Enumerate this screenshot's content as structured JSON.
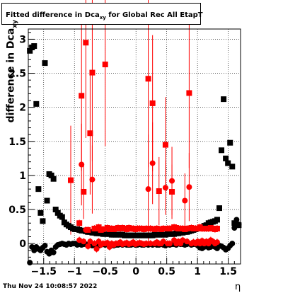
{
  "header": {
    "title_prefix": "Fitted difference in Dca",
    "title_sub": "xy",
    "title_suffix": " for Global Rec All EtapT"
  },
  "footer": {
    "timestamp": "Thu Nov 24 10:08:57 2022"
  },
  "chart_data": {
    "type": "scatter",
    "title": "Fitted difference in Dca_xy for Global Rec All EtapT",
    "xlabel": "η",
    "ylabel": "difference in Dca_xy",
    "xlim": [
      -1.75,
      1.7
    ],
    "ylim": [
      -0.3,
      3.15
    ],
    "xticks": [
      -1.5,
      -1,
      -0.5,
      0,
      0.5,
      1,
      1.5
    ],
    "xtick_labels": [
      "−1.5",
      "−1",
      "−0.5",
      "0",
      "0.5",
      "1",
      "1.5"
    ],
    "yticks": [
      0,
      0.5,
      1,
      1.5,
      2,
      2.5,
      3
    ],
    "ytick_labels": [
      "0",
      "0.5",
      "1",
      "1.5",
      "2",
      "2.5",
      "3"
    ],
    "grid": true,
    "colors": {
      "black_series": "#000000",
      "red_series": "#ff0000"
    },
    "series": [
      {
        "marker": "square",
        "color": "#000000",
        "x": [
          -1.725,
          -1.69,
          -1.655,
          -1.62,
          -1.585,
          -1.55,
          -1.515,
          -1.48,
          -1.445,
          -1.41,
          -1.375,
          -1.34,
          -1.305,
          -1.27,
          -1.235,
          -1.2,
          -1.165,
          -1.13,
          -1.095,
          -1.06,
          -1.025,
          -0.99,
          -0.955,
          -0.92,
          -0.885,
          -0.85,
          -0.815,
          -0.78,
          -0.745,
          -0.71,
          -0.675,
          -0.64,
          -0.605,
          -0.57,
          -0.535,
          -0.5,
          -0.465,
          -0.43,
          -0.395,
          -0.36,
          -0.325,
          -0.29,
          -0.255,
          -0.22,
          -0.185,
          -0.15,
          -0.115,
          -0.08,
          -0.045,
          -0.01,
          0.025,
          0.06,
          0.095,
          0.13,
          0.165,
          0.2,
          0.235,
          0.27,
          0.305,
          0.34,
          0.375,
          0.41,
          0.445,
          0.48,
          0.515,
          0.55,
          0.585,
          0.62,
          0.655,
          0.69,
          0.725,
          0.76,
          0.795,
          0.83,
          0.865,
          0.9,
          0.935,
          0.97,
          1.005,
          1.04,
          1.075,
          1.11,
          1.145,
          1.18,
          1.215,
          1.25,
          1.285,
          1.32,
          1.355,
          1.39,
          1.425,
          1.46,
          1.495,
          1.53,
          1.565,
          1.6,
          1.635,
          1.67
        ],
        "y": [
          2.83,
          2.88,
          2.9,
          2.05,
          0.8,
          0.45,
          0.33,
          2.65,
          0.63,
          1.02,
          1.0,
          0.95,
          0.5,
          0.45,
          0.41,
          0.39,
          0.31,
          0.28,
          0.26,
          0.24,
          0.22,
          0.21,
          0.21,
          0.2,
          0.19,
          0.19,
          0.18,
          0.17,
          0.17,
          0.16,
          0.16,
          0.15,
          0.15,
          0.15,
          0.14,
          0.14,
          0.14,
          0.14,
          0.13,
          0.13,
          0.13,
          0.13,
          0.13,
          0.13,
          0.12,
          0.12,
          0.12,
          0.12,
          0.12,
          0.12,
          0.12,
          0.12,
          0.12,
          0.12,
          0.12,
          0.12,
          0.12,
          0.12,
          0.13,
          0.13,
          0.13,
          0.13,
          0.13,
          0.13,
          0.14,
          0.14,
          0.14,
          0.14,
          0.15,
          0.15,
          0.16,
          0.16,
          0.17,
          0.17,
          0.18,
          0.19,
          0.2,
          0.21,
          0.22,
          0.23,
          0.24,
          0.26,
          0.27,
          0.3,
          0.31,
          0.32,
          0.33,
          0.35,
          0.52,
          1.37,
          2.12,
          1.25,
          1.18,
          1.48,
          1.13,
          0.3,
          0.27,
          0.27
        ]
      },
      {
        "marker": "circle",
        "color": "#000000",
        "x": [
          -1.725,
          -1.69,
          -1.655,
          -1.62,
          -1.585,
          -1.55,
          -1.515,
          -1.48,
          -1.445,
          -1.41,
          -1.375,
          -1.34,
          -1.305,
          -1.27,
          -1.235,
          -1.2,
          -1.165,
          -1.13,
          -1.095,
          -1.06,
          -1.025,
          -0.99,
          -0.955,
          -0.92,
          -0.885,
          -0.85,
          -0.815,
          -0.78,
          -0.745,
          -0.71,
          -0.675,
          -0.64,
          -0.605,
          -0.57,
          -0.535,
          -0.5,
          -0.465,
          -0.43,
          -0.395,
          -0.36,
          -0.325,
          -0.29,
          -0.255,
          -0.22,
          -0.185,
          -0.15,
          -0.115,
          -0.08,
          -0.045,
          -0.01,
          0.025,
          0.06,
          0.095,
          0.13,
          0.165,
          0.2,
          0.235,
          0.27,
          0.305,
          0.34,
          0.375,
          0.41,
          0.445,
          0.48,
          0.515,
          0.55,
          0.585,
          0.62,
          0.655,
          0.69,
          0.725,
          0.76,
          0.795,
          0.83,
          0.865,
          0.9,
          0.935,
          0.97,
          1.005,
          1.04,
          1.075,
          1.11,
          1.145,
          1.18,
          1.215,
          1.25,
          1.285,
          1.32,
          1.355,
          1.39,
          1.425,
          1.46,
          1.495,
          1.53,
          1.565,
          1.6,
          1.635,
          1.67
        ],
        "y": [
          -0.28,
          -0.05,
          -0.1,
          -0.05,
          -0.08,
          -0.1,
          -0.06,
          -0.03,
          -0.12,
          -0.15,
          -0.1,
          -0.13,
          -0.05,
          -0.02,
          -0.01,
          0.0,
          -0.01,
          -0.02,
          0.0,
          -0.01,
          0.0,
          0.0,
          -0.02,
          -0.01,
          -0.02,
          -0.01,
          -0.01,
          -0.03,
          0.0,
          -0.03,
          -0.02,
          -0.01,
          -0.03,
          -0.02,
          -0.01,
          -0.02,
          -0.01,
          -0.02,
          -0.02,
          -0.03,
          -0.02,
          -0.02,
          -0.01,
          -0.02,
          -0.01,
          -0.02,
          -0.02,
          -0.02,
          -0.01,
          -0.02,
          -0.02,
          -0.01,
          -0.02,
          -0.02,
          -0.01,
          -0.02,
          -0.01,
          -0.02,
          -0.01,
          -0.02,
          -0.02,
          -0.01,
          -0.02,
          -0.03,
          -0.01,
          -0.02,
          -0.01,
          -0.01,
          -0.02,
          0.0,
          -0.01,
          -0.01,
          -0.02,
          -0.01,
          0.0,
          -0.02,
          -0.01,
          -0.01,
          -0.03,
          -0.06,
          -0.07,
          -0.05,
          -0.04,
          -0.06,
          -0.05,
          -0.03,
          -0.05,
          -0.07,
          -0.03,
          -0.04,
          -0.06,
          -0.09,
          -0.07,
          -0.03,
          0.0,
          0.23,
          0.35,
          0.28
        ]
      },
      {
        "marker": "square",
        "color": "#ff0000",
        "x": [
          -1.06,
          -0.92,
          -0.885,
          -0.85,
          -0.815,
          -0.78,
          -0.745,
          -0.71,
          -0.675,
          -0.64,
          -0.605,
          -0.57,
          -0.535,
          -0.5,
          -0.465,
          -0.43,
          -0.395,
          -0.36,
          -0.325,
          -0.29,
          -0.255,
          -0.22,
          -0.185,
          -0.15,
          -0.115,
          -0.08,
          -0.045,
          -0.01,
          0.025,
          0.06,
          0.095,
          0.13,
          0.165,
          0.2,
          0.235,
          0.27,
          0.305,
          0.34,
          0.375,
          0.41,
          0.445,
          0.48,
          0.515,
          0.55,
          0.585,
          0.62,
          0.655,
          0.69,
          0.725,
          0.76,
          0.795,
          0.83,
          0.865,
          0.9,
          0.935,
          0.97,
          1.005,
          1.04,
          1.075,
          1.11,
          1.145,
          1.18,
          1.215,
          1.25,
          1.285,
          1.32
        ],
        "y": [
          0.93,
          0.3,
          2.17,
          0.76,
          2.95,
          0.2,
          1.62,
          2.51,
          0.22,
          0.22,
          0.24,
          0.2,
          0.21,
          2.63,
          0.23,
          0.21,
          0.22,
          0.21,
          0.22,
          0.23,
          0.22,
          0.23,
          0.22,
          0.21,
          0.23,
          0.22,
          0.22,
          0.21,
          0.22,
          0.22,
          0.22,
          0.21,
          0.22,
          2.42,
          0.22,
          2.06,
          0.21,
          0.22,
          0.77,
          0.21,
          0.22,
          1.45,
          0.22,
          0.22,
          0.76,
          0.24,
          0.23,
          0.22,
          0.22,
          0.22,
          0.21,
          0.22,
          2.21,
          0.23,
          0.22,
          0.22,
          0.22,
          0.24,
          0.22,
          0.22,
          0.22,
          0.22,
          0.23,
          0.22,
          0.21,
          0.22
        ],
        "err": [
          0.8,
          0.05,
          1.1,
          0.4,
          1.4,
          0.05,
          0.9,
          1.3,
          0.05,
          0.05,
          0.05,
          0.05,
          0.05,
          1.2,
          0.05,
          0.05,
          0.05,
          0.05,
          0.05,
          0.05,
          0.05,
          0.05,
          0.05,
          0.05,
          0.05,
          0.05,
          0.05,
          0.05,
          0.05,
          0.05,
          0.05,
          0.05,
          0.05,
          1.3,
          0.05,
          1.0,
          0.05,
          0.05,
          0.5,
          0.05,
          0.05,
          0.7,
          0.05,
          0.05,
          0.4,
          0.05,
          0.05,
          0.05,
          0.05,
          0.05,
          0.05,
          0.05,
          1.1,
          0.05,
          0.05,
          0.05,
          0.05,
          0.05,
          0.05,
          0.05,
          0.05,
          0.05,
          0.05,
          0.05,
          0.05,
          0.05
        ]
      },
      {
        "marker": "circle",
        "color": "#ff0000",
        "x": [
          -0.92,
          -0.885,
          -0.85,
          -0.815,
          -0.78,
          -0.745,
          -0.71,
          -0.675,
          -0.64,
          -0.605,
          -0.57,
          -0.535,
          -0.5,
          -0.465,
          -0.43,
          -0.395,
          -0.36,
          -0.325,
          -0.29,
          -0.255,
          -0.22,
          -0.185,
          -0.15,
          -0.115,
          -0.08,
          -0.045,
          -0.01,
          0.025,
          0.06,
          0.095,
          0.13,
          0.165,
          0.2,
          0.235,
          0.27,
          0.305,
          0.34,
          0.375,
          0.41,
          0.445,
          0.48,
          0.515,
          0.55,
          0.585,
          0.62,
          0.655,
          0.69,
          0.725,
          0.76,
          0.795,
          0.83,
          0.865,
          0.9,
          0.935,
          0.97,
          1.005,
          1.04,
          1.075,
          1.11,
          1.145,
          1.18,
          1.215,
          1.25,
          1.285,
          1.32
        ],
        "y": [
          0.05,
          1.16,
          0.03,
          0.2,
          -0.04,
          0.03,
          0.94,
          0.0,
          -0.08,
          0.03,
          -0.02,
          0.0,
          0.0,
          0.01,
          -0.05,
          0.0,
          -0.02,
          0.0,
          0.0,
          0.02,
          -0.01,
          0.0,
          0.01,
          -0.01,
          0.0,
          0.02,
          -0.01,
          0.0,
          0.01,
          0.0,
          -0.01,
          0.0,
          0.8,
          0.0,
          1.18,
          0.0,
          0.02,
          0.0,
          0.0,
          0.03,
          0.82,
          0.0,
          0.0,
          0.92,
          0.05,
          0.0,
          0.03,
          0.0,
          0.05,
          0.63,
          0.03,
          0.83,
          0.0,
          0.02,
          0.0,
          0.03,
          0.0,
          0.04,
          0.0,
          0.03,
          0.0,
          0.05,
          0.03,
          0.0,
          0.02
        ],
        "err": [
          0.05,
          0.6,
          0.05,
          0.05,
          0.05,
          0.05,
          0.5,
          0.05,
          0.05,
          0.05,
          0.05,
          0.05,
          0.05,
          0.05,
          0.05,
          0.05,
          0.05,
          0.05,
          0.05,
          0.05,
          0.05,
          0.05,
          0.05,
          0.05,
          0.05,
          0.05,
          0.05,
          0.05,
          0.05,
          0.05,
          0.05,
          0.05,
          0.8,
          0.05,
          0.6,
          0.05,
          0.05,
          0.05,
          0.05,
          0.05,
          0.4,
          0.05,
          0.05,
          0.5,
          0.05,
          0.05,
          0.05,
          0.05,
          0.05,
          0.4,
          0.05,
          0.5,
          0.05,
          0.05,
          0.05,
          0.05,
          0.05,
          0.05,
          0.05,
          0.05,
          0.05,
          0.05,
          0.05,
          0.05,
          0.05
        ]
      }
    ]
  }
}
